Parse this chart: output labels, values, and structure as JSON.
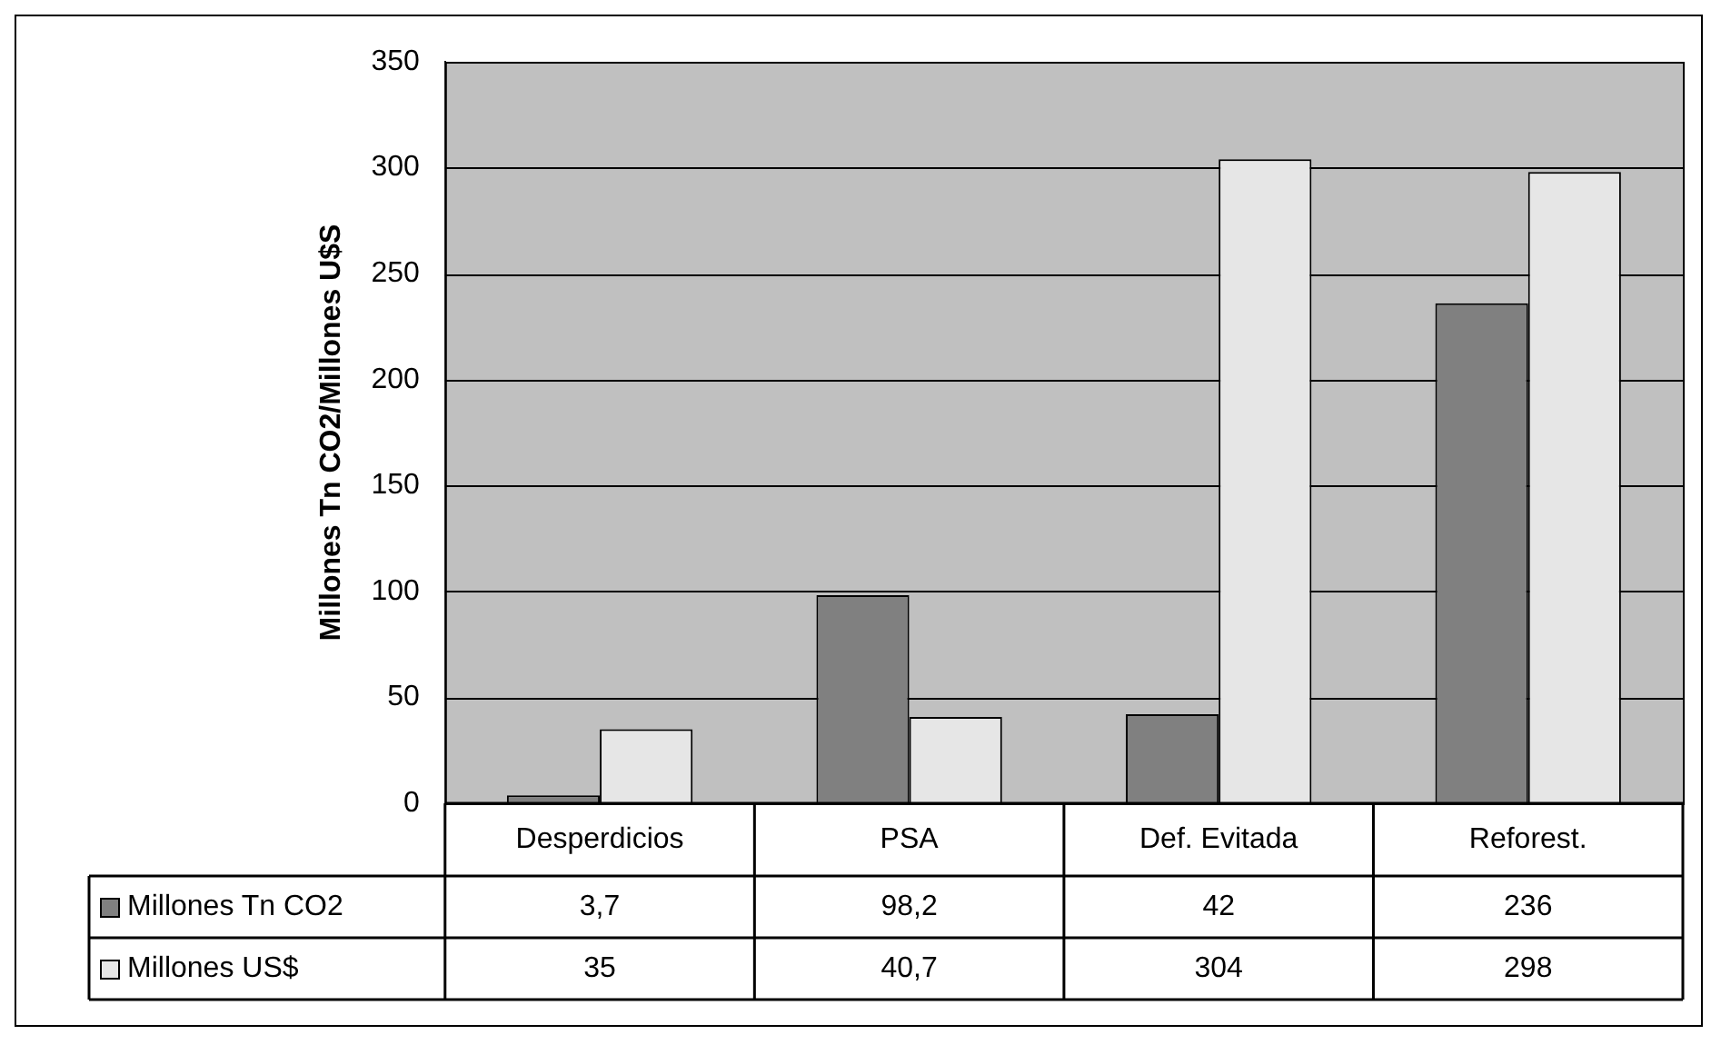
{
  "chart_data": {
    "type": "bar",
    "ylabel": "Millones Tn CO2/Millones U$S",
    "categories": [
      "Desperdicios",
      "PSA",
      "Def. Evitada",
      "Reforest."
    ],
    "series": [
      {
        "name": "Millones Tn CO2",
        "color": "#808080",
        "values": [
          3.7,
          98.2,
          42,
          236
        ],
        "value_labels": [
          "3,7",
          "98,2",
          "42",
          "236"
        ]
      },
      {
        "name": "Millones US$",
        "color": "#e6e6e6",
        "values": [
          35,
          40.7,
          304,
          298
        ],
        "value_labels": [
          "35",
          "40,7",
          "304",
          "298"
        ]
      }
    ],
    "ylim": [
      0,
      350
    ],
    "yticks": [
      0,
      50,
      100,
      150,
      200,
      250,
      300,
      350
    ],
    "grid": "y",
    "legend": "bottom"
  }
}
